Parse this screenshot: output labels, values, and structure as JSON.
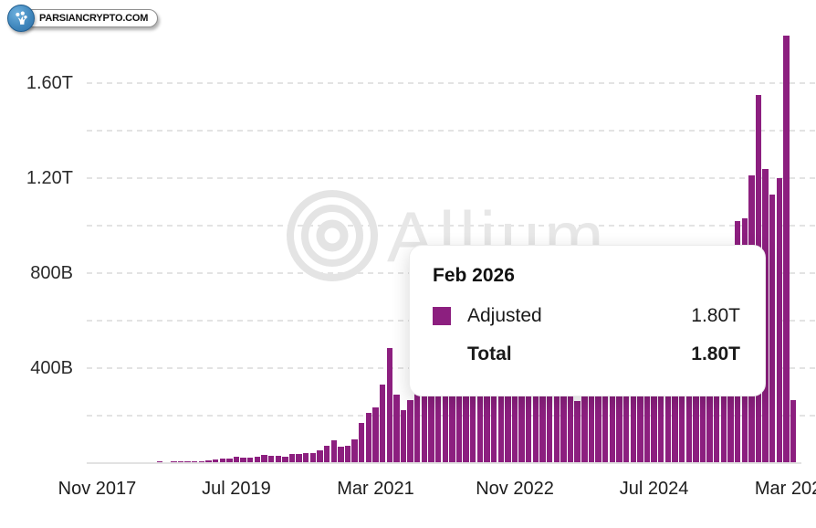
{
  "branding": {
    "site": "PARSIANCRYPTO.COM",
    "icon": "coin-plant-icon"
  },
  "watermark": {
    "text": "Allium",
    "icon": "concentric-circles-logo"
  },
  "colors": {
    "bar": "#8C1F7F",
    "grid": "#E3E3E3",
    "axis_text": "#1C1C1C",
    "watermark": "#E7E7E7",
    "logo_blue": "#3E85BB",
    "tooltip_bg": "#FFFFFF"
  },
  "y_axis": {
    "labels": [
      {
        "value": 400,
        "text": "400B"
      },
      {
        "value": 800,
        "text": "800B"
      },
      {
        "value": 1200,
        "text": "1.20T"
      },
      {
        "value": 1600,
        "text": "1.60T"
      }
    ]
  },
  "x_axis": {
    "ticks": [
      {
        "index": 1,
        "label": "Nov 2017"
      },
      {
        "index": 21,
        "label": "Jul 2019"
      },
      {
        "index": 41,
        "label": "Mar 2021"
      },
      {
        "index": 61,
        "label": "Nov 2022"
      },
      {
        "index": 81,
        "label": "Jul 2024"
      },
      {
        "index": 101,
        "label": "Mar 2026"
      }
    ]
  },
  "tooltip": {
    "title": "Feb 2026",
    "rows": [
      {
        "label": "Adjusted",
        "value": "1.80T",
        "swatch": "#8C1F7F",
        "bold": false
      },
      {
        "label": "Total",
        "value": "1.80T",
        "bold": true
      }
    ]
  },
  "chart_data": {
    "type": "bar",
    "unit": "USD (B = billions, T = trillions)",
    "x_start": "2017-10",
    "frequency": "monthly",
    "ylim": [
      0,
      1800
    ],
    "gridline_step": 200,
    "grid": "dashed horizontal every 200B",
    "legend_position": "tooltip only",
    "x_tick_labels": [
      "Nov 2017",
      "Jul 2019",
      "Mar 2021",
      "Nov 2022",
      "Jul 2024",
      "Mar 2026"
    ],
    "highlighted_point": {
      "month": "Feb 2026",
      "adjusted": "1.80T",
      "total": "1.80T"
    },
    "series": [
      {
        "name": "Adjusted",
        "color": "#8C1F7F",
        "values_billions": [
          2,
          3,
          4,
          5,
          4,
          4,
          4,
          5,
          5,
          5,
          6,
          5,
          6,
          8,
          8,
          8,
          9,
          12,
          15,
          18,
          20,
          26,
          24,
          22,
          27,
          33,
          30,
          32,
          28,
          40,
          38,
          44,
          42,
          52,
          72,
          96,
          68,
          74,
          100,
          171,
          210,
          235,
          330,
          485,
          287,
          225,
          265,
          310,
          340,
          380,
          420,
          450,
          480,
          460,
          500,
          520,
          560,
          540,
          480,
          460,
          440,
          470,
          520,
          430,
          440,
          480,
          400,
          370,
          340,
          300,
          263,
          290,
          320,
          360,
          400,
          400,
          430,
          470,
          520,
          500,
          480,
          460,
          490,
          470,
          450,
          520,
          600,
          650,
          680,
          720,
          780,
          820,
          860,
          1020,
          1030,
          1210,
          1550,
          1240,
          1130,
          1200,
          1800,
          265
        ]
      }
    ],
    "note_occlusion": "bars from ~Aug 2021 to ~Jun 2025 are partially hidden behind the tooltip; hidden values estimated"
  }
}
